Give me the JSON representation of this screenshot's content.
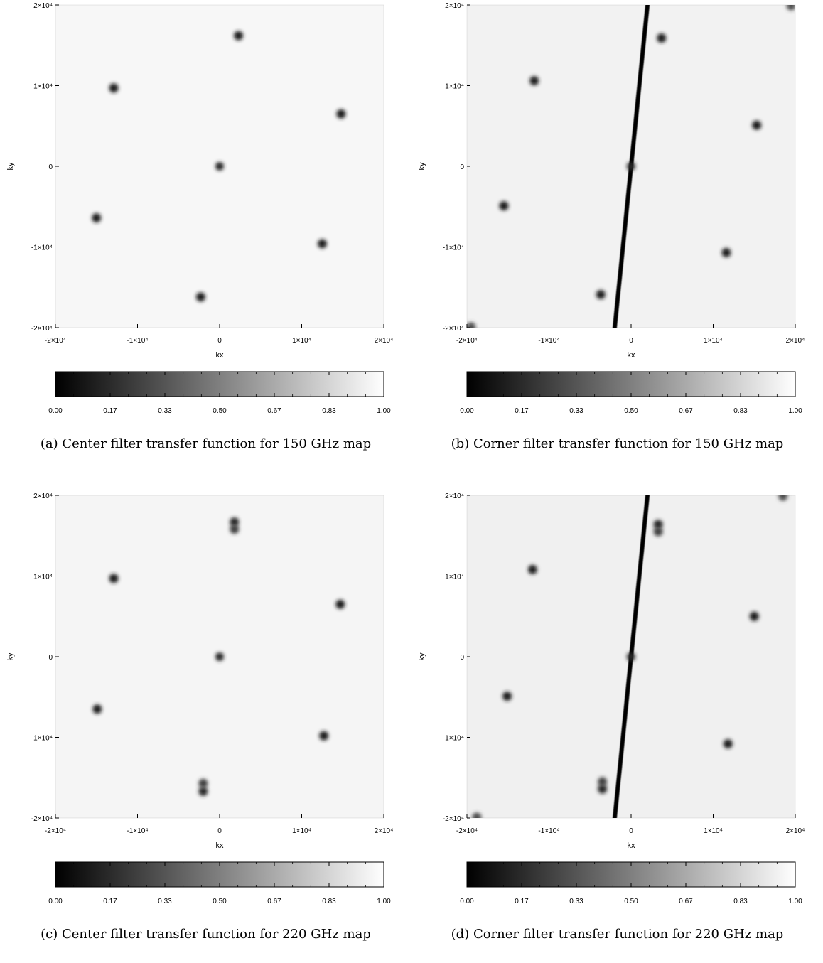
{
  "panels": [
    {
      "caption": "(a) Center filter transfer function for 150 GHz map",
      "chart_data": {
        "type": "heatmap",
        "title": "",
        "xlabel": "kx",
        "ylabel": "ky",
        "xlim": [
          -20000,
          20000
        ],
        "ylim": [
          -20000,
          20000
        ],
        "x_ticks": [
          {
            "value": -20000,
            "label": "-2×10⁴"
          },
          {
            "value": -10000,
            "label": "-1×10⁴"
          },
          {
            "value": 0,
            "label": "0"
          },
          {
            "value": 10000,
            "label": "1×10⁴"
          },
          {
            "value": 20000,
            "label": "2×10⁴"
          }
        ],
        "y_ticks": [
          {
            "value": 20000,
            "label": "2×10⁴"
          },
          {
            "value": 10000,
            "label": "1×10⁴"
          },
          {
            "value": 0,
            "label": "0"
          },
          {
            "value": -10000,
            "label": "-1×10⁴"
          },
          {
            "value": -20000,
            "label": "-2×10⁴"
          }
        ],
        "background_value": 0.97,
        "filtered_line": {
          "through": [
            0,
            0
          ],
          "angle_from_vertical_deg": 0,
          "value": 0.0
        },
        "notches": [
          {
            "kx": 2300,
            "ky": 16200,
            "value": 0.1
          },
          {
            "kx": -12900,
            "ky": 9700,
            "value": 0.1
          },
          {
            "kx": 14800,
            "ky": 6500,
            "value": 0.1
          },
          {
            "kx": -15000,
            "ky": -6400,
            "value": 0.1
          },
          {
            "kx": 12500,
            "ky": -9600,
            "value": 0.1
          },
          {
            "kx": -2300,
            "ky": -16200,
            "value": 0.1
          }
        ],
        "colorbar": {
          "min": 0,
          "max": 1,
          "colors": [
            "#000000",
            "#ffffff"
          ],
          "ticks": [
            "0.00",
            "0.17",
            "0.33",
            "0.50",
            "0.67",
            "0.83",
            "1.00"
          ]
        }
      }
    },
    {
      "caption": "(b) Corner filter transfer function for 150 GHz map",
      "chart_data": {
        "type": "heatmap",
        "title": "",
        "xlabel": "kx",
        "ylabel": "ky",
        "xlim": [
          -20000,
          20000
        ],
        "ylim": [
          -20000,
          20000
        ],
        "x_ticks": [
          {
            "value": -20000,
            "label": "-2×10⁴"
          },
          {
            "value": -10000,
            "label": "-1×10⁴"
          },
          {
            "value": 0,
            "label": "0"
          },
          {
            "value": 10000,
            "label": "1×10⁴"
          },
          {
            "value": 20000,
            "label": "2×10⁴"
          }
        ],
        "y_ticks": [
          {
            "value": 20000,
            "label": "2×10⁴"
          },
          {
            "value": 10000,
            "label": "1×10⁴"
          },
          {
            "value": 0,
            "label": "0"
          },
          {
            "value": -10000,
            "label": "-1×10⁴"
          },
          {
            "value": -20000,
            "label": "-2×10⁴"
          }
        ],
        "background_value": 0.95,
        "filtered_line": {
          "through": [
            0,
            0
          ],
          "angle_from_vertical_deg": 5.7,
          "value": 0.0
        },
        "notches": [
          {
            "kx": 3700,
            "ky": 15900,
            "value": 0.1
          },
          {
            "kx": -11800,
            "ky": 10600,
            "value": 0.1
          },
          {
            "kx": 15300,
            "ky": 5100,
            "value": 0.1
          },
          {
            "kx": -15500,
            "ky": -4900,
            "value": 0.1
          },
          {
            "kx": 11600,
            "ky": -10700,
            "value": 0.1
          },
          {
            "kx": -3700,
            "ky": -15900,
            "value": 0.1
          },
          {
            "kx": -19500,
            "ky": -19900,
            "value": 0.3
          },
          {
            "kx": 19500,
            "ky": 19900,
            "value": 0.3
          }
        ],
        "colorbar": {
          "min": 0,
          "max": 1,
          "colors": [
            "#000000",
            "#ffffff"
          ],
          "ticks": [
            "0.00",
            "0.17",
            "0.33",
            "0.50",
            "0.67",
            "0.83",
            "1.00"
          ]
        }
      }
    },
    {
      "caption": "(c) Center filter transfer function for 220 GHz map",
      "chart_data": {
        "type": "heatmap",
        "title": "",
        "xlabel": "kx",
        "ylabel": "ky",
        "xlim": [
          -20000,
          20000
        ],
        "ylim": [
          -20000,
          20000
        ],
        "x_ticks": [
          {
            "value": -20000,
            "label": "-2×10⁴"
          },
          {
            "value": -10000,
            "label": "-1×10⁴"
          },
          {
            "value": 0,
            "label": "0"
          },
          {
            "value": 10000,
            "label": "1×10⁴"
          },
          {
            "value": 20000,
            "label": "2×10⁴"
          }
        ],
        "y_ticks": [
          {
            "value": 20000,
            "label": "2×10⁴"
          },
          {
            "value": 10000,
            "label": "1×10⁴"
          },
          {
            "value": 0,
            "label": "0"
          },
          {
            "value": -10000,
            "label": "-1×10⁴"
          },
          {
            "value": -20000,
            "label": "-2×10⁴"
          }
        ],
        "background_value": 0.96,
        "filtered_line": {
          "through": [
            0,
            0
          ],
          "angle_from_vertical_deg": 0,
          "value": 0.0
        },
        "notches": [
          {
            "kx": 1800,
            "ky": 16700,
            "value": 0.15
          },
          {
            "kx": 1800,
            "ky": 15800,
            "value": 0.25
          },
          {
            "kx": -12900,
            "ky": 9700,
            "value": 0.1
          },
          {
            "kx": 14700,
            "ky": 6500,
            "value": 0.1
          },
          {
            "kx": -14900,
            "ky": -6500,
            "value": 0.1
          },
          {
            "kx": 12700,
            "ky": -9800,
            "value": 0.1
          },
          {
            "kx": -2000,
            "ky": -16700,
            "value": 0.15
          },
          {
            "kx": -2000,
            "ky": -15700,
            "value": 0.25
          }
        ],
        "colorbar": {
          "min": 0,
          "max": 1,
          "colors": [
            "#000000",
            "#ffffff"
          ],
          "ticks": [
            "0.00",
            "0.17",
            "0.33",
            "0.50",
            "0.67",
            "0.83",
            "1.00"
          ]
        }
      }
    },
    {
      "caption": "(d) Corner filter transfer function for 220 GHz map",
      "chart_data": {
        "type": "heatmap",
        "title": "",
        "xlabel": "kx",
        "ylabel": "ky",
        "xlim": [
          -20000,
          20000
        ],
        "ylim": [
          -20000,
          20000
        ],
        "x_ticks": [
          {
            "value": -20000,
            "label": "-2×10⁴"
          },
          {
            "value": -10000,
            "label": "-1×10⁴"
          },
          {
            "value": 0,
            "label": "0"
          },
          {
            "value": 10000,
            "label": "1×10⁴"
          },
          {
            "value": 20000,
            "label": "2×10⁴"
          }
        ],
        "y_ticks": [
          {
            "value": 20000,
            "label": "2×10⁴"
          },
          {
            "value": 10000,
            "label": "1×10⁴"
          },
          {
            "value": 0,
            "label": "0"
          },
          {
            "value": -10000,
            "label": "-1×10⁴"
          },
          {
            "value": -20000,
            "label": "-2×10⁴"
          }
        ],
        "background_value": 0.94,
        "filtered_line": {
          "through": [
            0,
            0
          ],
          "angle_from_vertical_deg": 5.7,
          "value": 0.0
        },
        "notches": [
          {
            "kx": 3300,
            "ky": 16400,
            "value": 0.15
          },
          {
            "kx": 3300,
            "ky": 15500,
            "value": 0.25
          },
          {
            "kx": -12000,
            "ky": 10800,
            "value": 0.1
          },
          {
            "kx": 15000,
            "ky": 5000,
            "value": 0.1
          },
          {
            "kx": -15100,
            "ky": -4900,
            "value": 0.1
          },
          {
            "kx": 11800,
            "ky": -10800,
            "value": 0.1
          },
          {
            "kx": -3500,
            "ky": -16400,
            "value": 0.15
          },
          {
            "kx": -3500,
            "ky": -15500,
            "value": 0.25
          },
          {
            "kx": -18800,
            "ky": -19900,
            "value": 0.3
          },
          {
            "kx": 18500,
            "ky": 19900,
            "value": 0.3
          }
        ],
        "colorbar": {
          "min": 0,
          "max": 1,
          "colors": [
            "#000000",
            "#ffffff"
          ],
          "ticks": [
            "0.00",
            "0.17",
            "0.33",
            "0.50",
            "0.67",
            "0.83",
            "1.00"
          ]
        }
      }
    }
  ]
}
